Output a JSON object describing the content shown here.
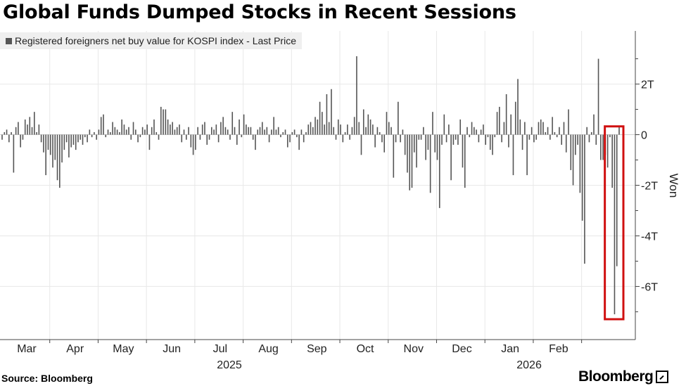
{
  "title": "Global Funds Dumped Stocks in Recent Sessions",
  "source": "Source: Bloomberg",
  "brand": "Bloomberg",
  "colors": {
    "bar": "#555555",
    "grid": "#e8e8e8",
    "highlight": "#d01010"
  },
  "chart_data": {
    "type": "bar",
    "legend": "Registered foreigners net buy value for KOSPI index - Last Price",
    "ylabel": "Won",
    "y_unit": "trillion won",
    "ylim": [
      -8.1,
      4.1
    ],
    "yticks": [
      {
        "value": 2,
        "label": "2T"
      },
      {
        "value": 0,
        "label": "0"
      },
      {
        "value": -2,
        "label": "-2T"
      },
      {
        "value": -4,
        "label": "-4T"
      },
      {
        "value": -6,
        "label": "-6T"
      }
    ],
    "month_labels": [
      "Mar",
      "Apr",
      "May",
      "Jun",
      "Jul",
      "Aug",
      "Sep",
      "Oct",
      "Nov",
      "Dec",
      "Jan",
      "Feb"
    ],
    "year_labels": [
      {
        "label": "2025",
        "month_index": 4.7
      },
      {
        "label": "2026",
        "month_index": 10.9
      }
    ],
    "highlight": {
      "note": "last 6 sessions boxed in red",
      "from_session": -6
    },
    "sessions_per_month": 21,
    "values": [
      -0.2,
      0.1,
      0.2,
      -0.3,
      0.1,
      -1.5,
      0.3,
      0.5,
      -0.5,
      -0.2,
      0.6,
      0.4,
      0.7,
      0.3,
      0.9,
      0.1,
      0.4,
      -0.3,
      -0.7,
      -1.6,
      -0.6,
      -0.8,
      -1.3,
      -1.0,
      -1.8,
      -2.1,
      -1.1,
      -0.6,
      -0.3,
      -0.9,
      -0.5,
      -0.4,
      -0.6,
      -0.3,
      -0.2,
      -0.4,
      -0.1,
      -0.3,
      0.2,
      -0.1,
      0.1,
      -0.2,
      0.2,
      0.7,
      0.8,
      -0.1,
      0.2,
      0.1,
      0.5,
      0.3,
      0.2,
      0.1,
      0.6,
      0.4,
      0.2,
      0.3,
      -0.2,
      0.5,
      0.2,
      -0.3,
      -0.1,
      0.3,
      0.2,
      0.4,
      -0.6,
      0.3,
      0.6,
      0.1,
      -0.2,
      1.1,
      1.0,
      1.0,
      0.6,
      0.4,
      0.5,
      0.2,
      0.3,
      0.4,
      -0.3,
      0.2,
      -0.2,
      0.3,
      -0.5,
      -0.8,
      -0.6,
      0.3,
      -0.2,
      0.4,
      0.5,
      -0.4,
      -0.2,
      0.3,
      0.2,
      0.4,
      -0.3,
      0.5,
      0.7,
      0.3,
      0.2,
      -0.2,
      0.9,
      0.3,
      -0.4,
      0.6,
      -0.1,
      0.8,
      0.4,
      0.3,
      0.3,
      -0.2,
      -0.6,
      0.2,
      0.3,
      0.5,
      0.2,
      0.3,
      -0.3,
      0.2,
      0.7,
      0.2,
      0.3,
      -0.1,
      0.1,
      0.2,
      -0.5,
      -0.3,
      0.1,
      0.2,
      -0.1,
      -0.6,
      0.2,
      -0.3,
      0.1,
      0.4,
      0.5,
      0.3,
      0.7,
      0.6,
      1.3,
      0.9,
      0.4,
      1.6,
      0.5,
      1.8,
      0.3,
      -0.2,
      0.6,
      0.4,
      -0.3,
      0.1,
      0.4,
      -0.2,
      0.3,
      0.7,
      3.1,
      0.5,
      -0.8,
      1.0,
      0.3,
      0.8,
      0.6,
      0.4,
      -0.5,
      0.3,
      0.1,
      -0.3,
      -0.7,
      0.9,
      0.5,
      0.3,
      -1.7,
      -0.3,
      1.3,
      -0.3,
      0.2,
      -0.8,
      -1.5,
      -2.2,
      -2.1,
      -0.7,
      -1.3,
      -0.2,
      -0.2,
      0.3,
      -1.0,
      -0.6,
      -2.3,
      0.9,
      -0.7,
      -1.0,
      -2.9,
      -0.4,
      0.8,
      -0.3,
      0.4,
      -1.8,
      -0.4,
      -0.2,
      -0.4,
      0.6,
      -1.3,
      -2.1,
      0.3,
      -0.1,
      0.5,
      0.3,
      0.2,
      -0.3,
      0.2,
      0.4,
      -0.4,
      -0.1,
      -0.6,
      -0.8,
      -0.1,
      0.9,
      1.1,
      -0.3,
      0.5,
      1.6,
      -0.5,
      0.8,
      -1.6,
      1.3,
      2.2,
      0.6,
      -0.6,
      0.5,
      -1.6,
      -0.2,
      0.3,
      -0.3,
      -0.2,
      0.5,
      0.6,
      0.5,
      0.1,
      0.3,
      -0.2,
      0.7,
      0.1,
      -0.1,
      0.3,
      -0.4,
      0.5,
      -0.7,
      1.0,
      -1.4,
      -2.0,
      -0.8,
      -0.4,
      -2.3,
      -3.4,
      -5.1,
      0.3,
      -0.3,
      0.1,
      0.8,
      -0.4,
      3.0,
      -1.0,
      -1.0,
      -0.8,
      -1.3,
      -0.1,
      -2.1,
      -7.1,
      -5.2,
      0.3
    ]
  }
}
